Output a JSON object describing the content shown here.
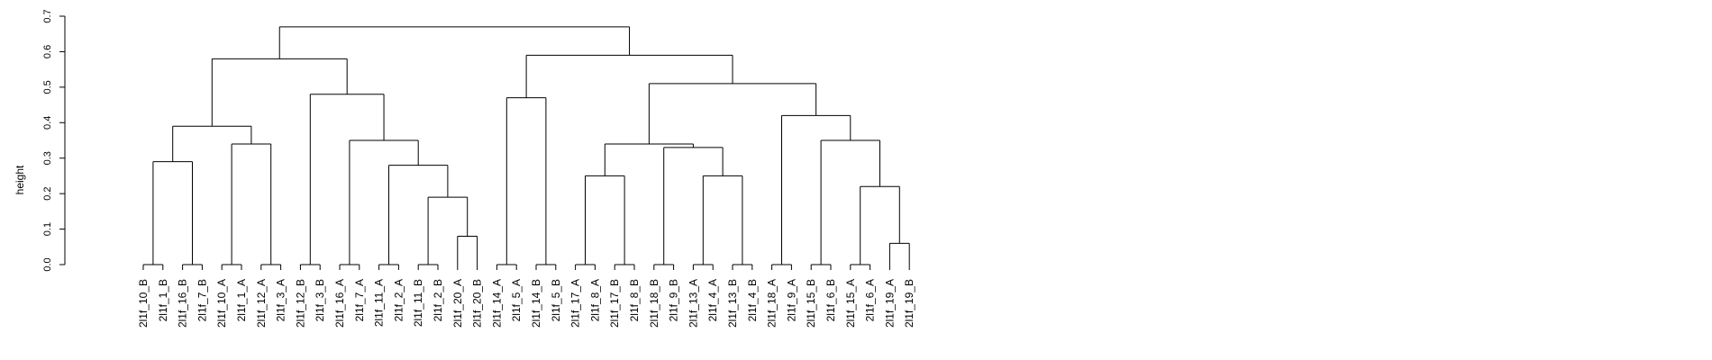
{
  "chart_data": {
    "type": "dendrogram",
    "ylabel": "height",
    "ylim": [
      0,
      0.7
    ],
    "y_ticks": [
      "0.0",
      "0.1",
      "0.2",
      "0.3",
      "0.4",
      "0.5",
      "0.6",
      "0.7"
    ],
    "leaves": [
      "2l1f_10_B",
      "2l1f_1_B",
      "2l1f_16_B",
      "2l1f_7_B",
      "2l1f_10_A",
      "2l1f_1_A",
      "2l1f_12_A",
      "2l1f_3_A",
      "2l1f_12_B",
      "2l1f_3_B",
      "2l1f_16_A",
      "2l1f_7_A",
      "2l1f_11_A",
      "2l1f_2_A",
      "2l1f_11_B",
      "2l1f_2_B",
      "2l1f_20_A",
      "2l1f_20_B",
      "2l1f_14_A",
      "2l1f_5_A",
      "2l1f_14_B",
      "2l1f_5_B",
      "2l1f_17_A",
      "2l1f_8_A",
      "2l1f_17_B",
      "2l1f_8_B",
      "2l1f_18_B",
      "2l1f_9_B",
      "2l1f_13_A",
      "2l1f_4_A",
      "2l1f_13_B",
      "2l1f_4_B",
      "2l1f_18_A",
      "2l1f_9_A",
      "2l1f_15_B",
      "2l1f_6_B",
      "2l1f_15_A",
      "2l1f_6_A",
      "2l1f_19_A",
      "2l1f_19_B"
    ],
    "merges": [
      {
        "left": "2l1f_10_B",
        "right": "2l1f_1_B",
        "height": 0.0
      },
      {
        "left": "2l1f_16_B",
        "right": "2l1f_7_B",
        "height": 0.0
      },
      {
        "left": "2l1f_10_A",
        "right": "2l1f_1_A",
        "height": 0.0
      },
      {
        "left": "2l1f_12_A",
        "right": "2l1f_3_A",
        "height": 0.0
      },
      {
        "left": "2l1f_12_B",
        "right": "2l1f_3_B",
        "height": 0.0
      },
      {
        "left": "2l1f_16_A",
        "right": "2l1f_7_A",
        "height": 0.0
      },
      {
        "left": "2l1f_11_A",
        "right": "2l1f_2_A",
        "height": 0.0
      },
      {
        "left": "2l1f_11_B",
        "right": "2l1f_2_B",
        "height": 0.0
      },
      {
        "left": "2l1f_20_A",
        "right": "2l1f_20_B",
        "height": 0.08
      },
      {
        "left": "2l1f_14_A",
        "right": "2l1f_5_A",
        "height": 0.0
      },
      {
        "left": "2l1f_14_B",
        "right": "2l1f_5_B",
        "height": 0.0
      },
      {
        "left": "2l1f_17_A",
        "right": "2l1f_8_A",
        "height": 0.0
      },
      {
        "left": "2l1f_17_B",
        "right": "2l1f_8_B",
        "height": 0.0
      },
      {
        "left": "2l1f_18_B",
        "right": "2l1f_9_B",
        "height": 0.0
      },
      {
        "left": "2l1f_13_A",
        "right": "2l1f_4_A",
        "height": 0.0
      },
      {
        "left": "2l1f_13_B",
        "right": "2l1f_4_B",
        "height": 0.0
      },
      {
        "left": "2l1f_18_A",
        "right": "2l1f_9_A",
        "height": 0.0
      },
      {
        "left": "2l1f_15_B",
        "right": "2l1f_6_B",
        "height": 0.0
      },
      {
        "left": "2l1f_15_A",
        "right": "2l1f_6_A",
        "height": 0.0
      },
      {
        "left": "2l1f_19_A",
        "right": "2l1f_19_B",
        "height": 0.06
      },
      {
        "left": "m8",
        "right": "m9",
        "height": 0.19
      },
      {
        "left": "m7",
        "right": "m21",
        "height": 0.28
      },
      {
        "left": "m6",
        "right": "m22",
        "height": 0.35
      },
      {
        "left": "m5",
        "right": "m23",
        "height": 0.48
      },
      {
        "left": "m1",
        "right": "m2",
        "height": 0.29
      },
      {
        "left": "m3",
        "right": "m4",
        "height": 0.34
      },
      {
        "left": "m25",
        "right": "m26",
        "height": 0.39
      },
      {
        "left": "m27",
        "right": "m24",
        "height": 0.58
      },
      {
        "left": "m10",
        "right": "m11",
        "height": 0.47
      },
      {
        "left": "m12",
        "right": "m13",
        "height": 0.25
      },
      {
        "left": "m15",
        "right": "m16",
        "height": 0.25
      },
      {
        "left": "m14",
        "right": "m31",
        "height": 0.33
      },
      {
        "left": "m30",
        "right": "m32",
        "height": 0.34
      },
      {
        "left": "m19",
        "right": "m20",
        "height": 0.22
      },
      {
        "left": "m18",
        "right": "m34",
        "height": 0.35
      },
      {
        "left": "m17",
        "right": "m35",
        "height": 0.42
      },
      {
        "left": "m33",
        "right": "m36",
        "height": 0.51
      },
      {
        "left": "m29",
        "right": "m37",
        "height": 0.59
      },
      {
        "left": "m28",
        "right": "m38",
        "height": 0.67
      }
    ]
  }
}
